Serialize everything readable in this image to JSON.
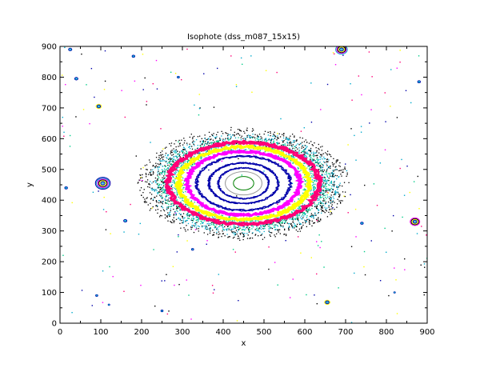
{
  "chart_data": {
    "type": "contour",
    "title": "Isophote (dss_m087_15x15)",
    "xlabel": "x",
    "ylabel": "y",
    "xlim": [
      0,
      900
    ],
    "ylim": [
      0,
      900
    ],
    "x_ticks": [
      0,
      100,
      200,
      300,
      400,
      500,
      600,
      700,
      800,
      900
    ],
    "y_ticks": [
      0,
      100,
      200,
      300,
      400,
      500,
      600,
      700,
      800,
      900
    ],
    "grid": false,
    "legend": "none",
    "galaxy": {
      "center": [
        450,
        455
      ],
      "contours": [
        {
          "level": 1,
          "color": "#008000",
          "rx": 25,
          "ry": 22,
          "style": "solid"
        },
        {
          "level": 2,
          "color": "#999999",
          "rx": 45,
          "ry": 38,
          "style": "solid"
        },
        {
          "level": 3,
          "color": "#0000aa",
          "rx": 62,
          "ry": 50,
          "style": "noisy"
        },
        {
          "level": 4,
          "color": "#0000aa",
          "rx": 85,
          "ry": 66,
          "style": "noisy"
        },
        {
          "level": 5,
          "color": "#0000aa",
          "rx": 115,
          "ry": 88,
          "style": "noisy"
        },
        {
          "level": 6,
          "color": "#ff00ff",
          "rx": 138,
          "ry": 103,
          "style": "noisy"
        },
        {
          "level": 7,
          "color": "#ffff00",
          "rx": 160,
          "ry": 118,
          "style": "noisy"
        },
        {
          "level": 8,
          "color": "#ff0077",
          "rx": 185,
          "ry": 133,
          "style": "noisy"
        },
        {
          "level": 9,
          "color": "#00cc88",
          "rx": 205,
          "ry": 145,
          "style": "scatter"
        },
        {
          "level": 10,
          "color": "#00aacc",
          "rx": 225,
          "ry": 158,
          "style": "scatter"
        },
        {
          "level": 11,
          "color": "#000000",
          "rx": 250,
          "ry": 175,
          "style": "scatter"
        }
      ]
    },
    "stars": [
      {
        "x": 105,
        "y": 455,
        "size": 28
      },
      {
        "x": 870,
        "y": 330,
        "size": 18
      },
      {
        "x": 690,
        "y": 890,
        "size": 22
      },
      {
        "x": 95,
        "y": 705,
        "size": 10
      },
      {
        "x": 655,
        "y": 68,
        "size": 10
      },
      {
        "x": 40,
        "y": 795,
        "size": 6
      },
      {
        "x": 160,
        "y": 333,
        "size": 6
      },
      {
        "x": 740,
        "y": 325,
        "size": 5
      },
      {
        "x": 880,
        "y": 785,
        "size": 5
      },
      {
        "x": 15,
        "y": 440,
        "size": 5
      },
      {
        "x": 25,
        "y": 890,
        "size": 6
      },
      {
        "x": 180,
        "y": 868,
        "size": 5
      },
      {
        "x": 290,
        "y": 800,
        "size": 4
      },
      {
        "x": 250,
        "y": 40,
        "size": 4
      },
      {
        "x": 90,
        "y": 90,
        "size": 4
      },
      {
        "x": 325,
        "y": 240,
        "size": 4
      },
      {
        "x": 120,
        "y": 60,
        "size": 3
      },
      {
        "x": 820,
        "y": 100,
        "size": 3
      }
    ]
  }
}
